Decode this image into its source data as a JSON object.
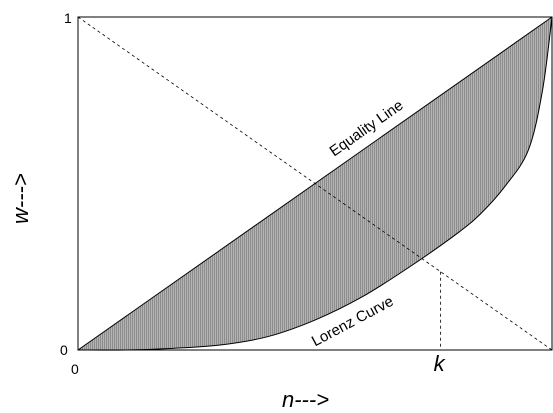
{
  "chart_data": {
    "type": "area",
    "xlabel": "n--->",
    "ylabel": "w--->",
    "xlim": [
      0,
      1
    ],
    "ylim": [
      0,
      1
    ],
    "x_tick_labels": [
      "0"
    ],
    "y_tick_labels": [
      "0",
      "1"
    ],
    "grid": false,
    "series": [
      {
        "name": "Equality Line",
        "x": [
          0,
          1
        ],
        "y": [
          0,
          1
        ]
      },
      {
        "name": "Lorenz Curve",
        "x": [
          0,
          0.1,
          0.2,
          0.3,
          0.4,
          0.5,
          0.6,
          0.7,
          0.8,
          0.85,
          0.9,
          0.95,
          0.98,
          1.0
        ],
        "y": [
          0,
          0.0,
          0.005,
          0.015,
          0.04,
          0.09,
          0.16,
          0.25,
          0.35,
          0.41,
          0.49,
          0.6,
          0.78,
          1.0
        ]
      },
      {
        "x": [
          0,
          1
        ],
        "y": [
          1,
          0
        ],
        "style": "dashed"
      }
    ],
    "annotations": [
      {
        "text": "k",
        "x": 0.765,
        "y": 0.235,
        "style": "dashed-drop-line"
      }
    ],
    "shaded_region": "between Equality Line and Lorenz Curve"
  }
}
